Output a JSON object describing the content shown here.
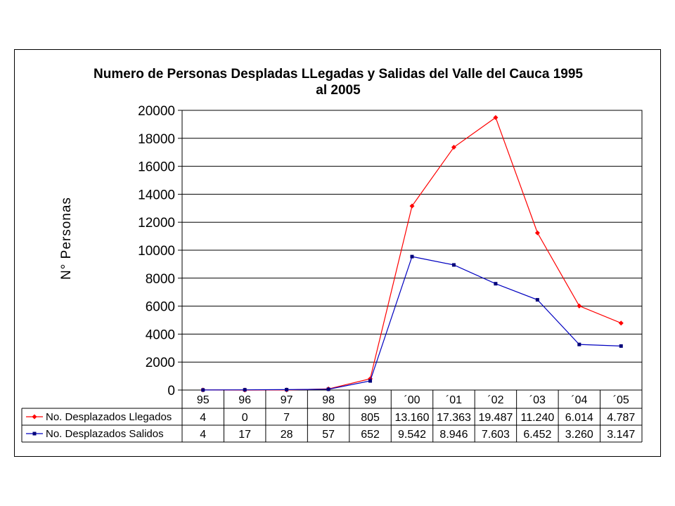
{
  "chart_data": {
    "type": "line",
    "title_lines": [
      "Numero de Personas Despladas LLegadas y Salidas del Valle del Cauca 1995",
      "al 2005"
    ],
    "ylabel": "N° Personas",
    "xlabel": "",
    "ylim": [
      0,
      20000
    ],
    "yticks": [
      "0",
      "2000",
      "4000",
      "6000",
      "8000",
      "10000",
      "12000",
      "14000",
      "16000",
      "18000",
      "20000"
    ],
    "grid": true,
    "legend_placement": "data-table",
    "categories": [
      "95",
      "96",
      "97",
      "98",
      "99",
      "´00",
      "´01",
      "´02",
      "´03",
      "´04",
      "´05"
    ],
    "series": [
      {
        "name": "No. Desplazados Llegados",
        "color": "#ff0000",
        "marker_color": "#ff0000",
        "marker": "diamond",
        "values": [
          4,
          0,
          7,
          80,
          805,
          13160,
          17363,
          19487,
          11240,
          6014,
          4787
        ],
        "labels": [
          "4",
          "0",
          "7",
          "80",
          "805",
          "13.160",
          "17.363",
          "19.487",
          "11.240",
          "6.014",
          "4.787"
        ]
      },
      {
        "name": "No. Desplazados Salidos",
        "color": "#0000c0",
        "marker_color": "#00007a",
        "marker": "square",
        "values": [
          4,
          17,
          28,
          57,
          652,
          9542,
          8946,
          7603,
          6452,
          3260,
          3147
        ],
        "labels": [
          "4",
          "17",
          "28",
          "57",
          "652",
          "9.542",
          "8.946",
          "7.603",
          "6.452",
          "3.260",
          "3.147"
        ]
      }
    ]
  }
}
